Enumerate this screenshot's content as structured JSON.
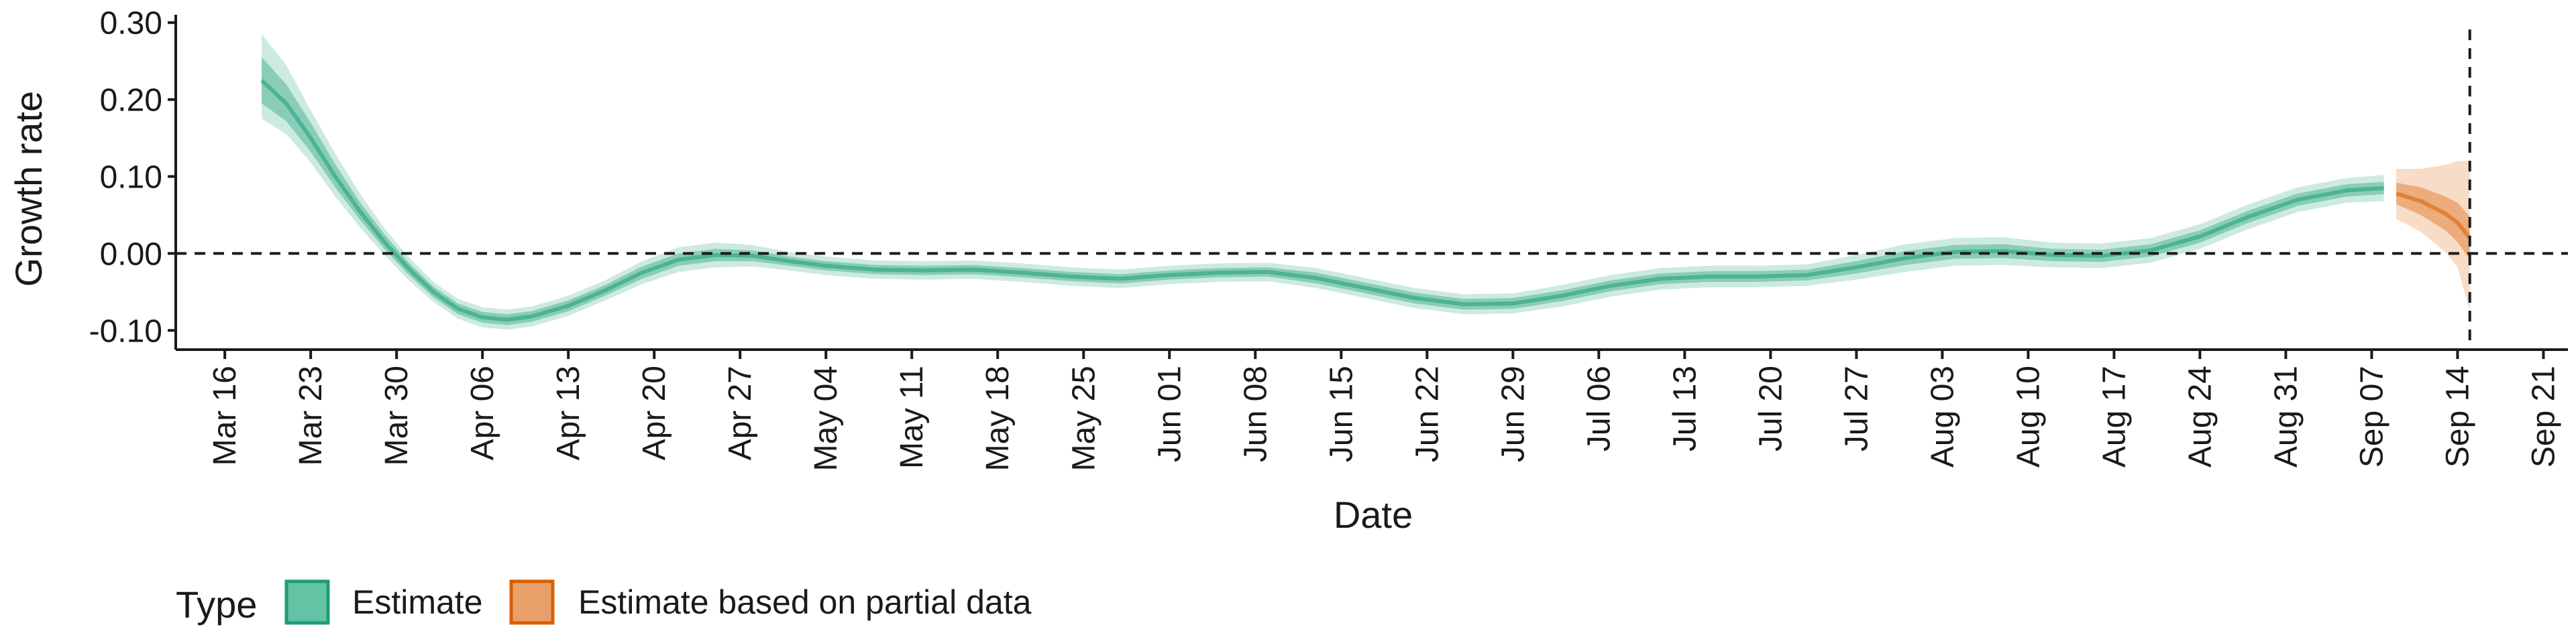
{
  "chart_data": {
    "type": "area",
    "title": "",
    "xlabel": "Date",
    "ylabel": "Growth rate",
    "x_range": [
      "2020-03-12",
      "2020-09-23"
    ],
    "ylim": [
      -0.125,
      0.305
    ],
    "y_ticks": [
      -0.1,
      0.0,
      0.1,
      0.2,
      0.3
    ],
    "y_tick_labels": [
      "-0.10",
      "0.00",
      "0.10",
      "0.20",
      "0.30"
    ],
    "x_ticks": [
      "2020-03-16",
      "2020-03-23",
      "2020-03-30",
      "2020-04-06",
      "2020-04-13",
      "2020-04-20",
      "2020-04-27",
      "2020-05-04",
      "2020-05-11",
      "2020-05-18",
      "2020-05-25",
      "2020-06-01",
      "2020-06-08",
      "2020-06-15",
      "2020-06-22",
      "2020-06-29",
      "2020-07-06",
      "2020-07-13",
      "2020-07-20",
      "2020-07-27",
      "2020-08-03",
      "2020-08-10",
      "2020-08-17",
      "2020-08-24",
      "2020-08-31",
      "2020-09-07",
      "2020-09-14",
      "2020-09-21"
    ],
    "x_tick_labels": [
      "Mar 16",
      "Mar 23",
      "Mar 30",
      "Apr 06",
      "Apr 13",
      "Apr 20",
      "Apr 27",
      "May 04",
      "May 11",
      "May 18",
      "May 25",
      "Jun 01",
      "Jun 08",
      "Jun 15",
      "Jun 22",
      "Jun 29",
      "Jul 06",
      "Jul 13",
      "Jul 20",
      "Jul 27",
      "Aug 03",
      "Aug 10",
      "Aug 17",
      "Aug 24",
      "Aug 31",
      "Sep 07",
      "Sep 14",
      "Sep 21"
    ],
    "reference_lines": {
      "horizontal_y": 0.0,
      "vertical_date": "2020-09-15"
    },
    "grid": false,
    "legend": {
      "position": "bottom-left",
      "title": "Type",
      "entries": [
        {
          "label": "Estimate",
          "color": "#66c2a5",
          "border": "#1b9e77"
        },
        {
          "label": "Estimate based on partial data",
          "color": "#e8a06b",
          "border": "#d95f02"
        }
      ]
    },
    "series": [
      {
        "name": "Estimate",
        "color": "#1b9e77",
        "points": [
          [
            "2020-03-19",
            0.225,
            0.195,
            0.255,
            0.175,
            0.285
          ],
          [
            "2020-03-21",
            0.195,
            0.172,
            0.22,
            0.155,
            0.245
          ],
          [
            "2020-03-23",
            0.15,
            0.132,
            0.17,
            0.118,
            0.186
          ],
          [
            "2020-03-25",
            0.1,
            0.086,
            0.116,
            0.074,
            0.13
          ],
          [
            "2020-03-27",
            0.055,
            0.044,
            0.067,
            0.034,
            0.078
          ],
          [
            "2020-03-29",
            0.015,
            0.006,
            0.025,
            -0.002,
            0.033
          ],
          [
            "2020-03-31",
            -0.02,
            -0.028,
            -0.012,
            -0.035,
            -0.005
          ],
          [
            "2020-04-02",
            -0.05,
            -0.057,
            -0.043,
            -0.063,
            -0.037
          ],
          [
            "2020-04-04",
            -0.072,
            -0.079,
            -0.065,
            -0.085,
            -0.059
          ],
          [
            "2020-04-06",
            -0.083,
            -0.09,
            -0.076,
            -0.096,
            -0.07
          ],
          [
            "2020-04-08",
            -0.086,
            -0.093,
            -0.079,
            -0.099,
            -0.073
          ],
          [
            "2020-04-10",
            -0.082,
            -0.089,
            -0.075,
            -0.095,
            -0.069
          ],
          [
            "2020-04-13",
            -0.068,
            -0.075,
            -0.061,
            -0.081,
            -0.055
          ],
          [
            "2020-04-16",
            -0.048,
            -0.055,
            -0.041,
            -0.061,
            -0.035
          ],
          [
            "2020-04-19",
            -0.025,
            -0.033,
            -0.017,
            -0.04,
            -0.01
          ],
          [
            "2020-04-22",
            -0.008,
            -0.016,
            0.0,
            -0.024,
            0.008
          ],
          [
            "2020-04-25",
            -0.002,
            -0.01,
            0.006,
            -0.018,
            0.014
          ],
          [
            "2020-04-28",
            -0.003,
            -0.01,
            0.004,
            -0.017,
            0.011
          ],
          [
            "2020-05-01",
            -0.01,
            -0.016,
            -0.004,
            -0.022,
            0.002
          ],
          [
            "2020-05-04",
            -0.016,
            -0.022,
            -0.01,
            -0.028,
            -0.004
          ],
          [
            "2020-05-08",
            -0.021,
            -0.027,
            -0.015,
            -0.033,
            -0.009
          ],
          [
            "2020-05-12",
            -0.022,
            -0.028,
            -0.016,
            -0.034,
            -0.01
          ],
          [
            "2020-05-16",
            -0.021,
            -0.027,
            -0.015,
            -0.033,
            -0.009
          ],
          [
            "2020-05-20",
            -0.025,
            -0.031,
            -0.019,
            -0.037,
            -0.013
          ],
          [
            "2020-05-24",
            -0.03,
            -0.036,
            -0.024,
            -0.042,
            -0.018
          ],
          [
            "2020-05-28",
            -0.033,
            -0.039,
            -0.027,
            -0.045,
            -0.021
          ],
          [
            "2020-06-01",
            -0.028,
            -0.034,
            -0.022,
            -0.04,
            -0.016
          ],
          [
            "2020-06-05",
            -0.025,
            -0.031,
            -0.019,
            -0.037,
            -0.013
          ],
          [
            "2020-06-09",
            -0.024,
            -0.03,
            -0.018,
            -0.036,
            -0.012
          ],
          [
            "2020-06-13",
            -0.032,
            -0.039,
            -0.025,
            -0.045,
            -0.019
          ],
          [
            "2020-06-17",
            -0.045,
            -0.052,
            -0.038,
            -0.058,
            -0.032
          ],
          [
            "2020-06-21",
            -0.058,
            -0.065,
            -0.051,
            -0.071,
            -0.045
          ],
          [
            "2020-06-25",
            -0.066,
            -0.073,
            -0.059,
            -0.079,
            -0.053
          ],
          [
            "2020-06-29",
            -0.065,
            -0.072,
            -0.058,
            -0.078,
            -0.052
          ],
          [
            "2020-07-03",
            -0.055,
            -0.062,
            -0.048,
            -0.069,
            -0.041
          ],
          [
            "2020-07-07",
            -0.042,
            -0.049,
            -0.035,
            -0.056,
            -0.028
          ],
          [
            "2020-07-11",
            -0.033,
            -0.04,
            -0.026,
            -0.047,
            -0.019
          ],
          [
            "2020-07-15",
            -0.03,
            -0.037,
            -0.023,
            -0.044,
            -0.016
          ],
          [
            "2020-07-19",
            -0.03,
            -0.037,
            -0.023,
            -0.044,
            -0.016
          ],
          [
            "2020-07-23",
            -0.028,
            -0.035,
            -0.021,
            -0.042,
            -0.014
          ],
          [
            "2020-07-27",
            -0.018,
            -0.026,
            -0.01,
            -0.034,
            -0.002
          ],
          [
            "2020-07-31",
            -0.006,
            -0.015,
            0.003,
            -0.024,
            0.012
          ],
          [
            "2020-08-04",
            0.002,
            -0.007,
            0.011,
            -0.016,
            0.02
          ],
          [
            "2020-08-08",
            0.003,
            -0.006,
            0.012,
            -0.015,
            0.021
          ],
          [
            "2020-08-12",
            -0.002,
            -0.01,
            0.006,
            -0.018,
            0.014
          ],
          [
            "2020-08-16",
            -0.003,
            -0.011,
            0.005,
            -0.019,
            0.013
          ],
          [
            "2020-08-20",
            0.004,
            -0.004,
            0.012,
            -0.012,
            0.02
          ],
          [
            "2020-08-24",
            0.022,
            0.014,
            0.03,
            0.006,
            0.038
          ],
          [
            "2020-08-28",
            0.048,
            0.04,
            0.056,
            0.032,
            0.064
          ],
          [
            "2020-09-01",
            0.07,
            0.062,
            0.078,
            0.054,
            0.086
          ],
          [
            "2020-09-05",
            0.082,
            0.074,
            0.09,
            0.066,
            0.098
          ],
          [
            "2020-09-08",
            0.085,
            0.077,
            0.093,
            0.068,
            0.102
          ]
        ]
      },
      {
        "name": "Estimate based on partial data",
        "color": "#d95f02",
        "points": [
          [
            "2020-09-09",
            0.078,
            0.064,
            0.092,
            0.045,
            0.11
          ],
          [
            "2020-09-11",
            0.068,
            0.05,
            0.086,
            0.028,
            0.11
          ],
          [
            "2020-09-13",
            0.052,
            0.03,
            0.074,
            0.002,
            0.115
          ],
          [
            "2020-09-14",
            0.04,
            0.015,
            0.066,
            -0.018,
            0.12
          ],
          [
            "2020-09-15",
            0.02,
            -0.008,
            0.048,
            -0.075,
            0.12
          ]
        ]
      }
    ]
  }
}
